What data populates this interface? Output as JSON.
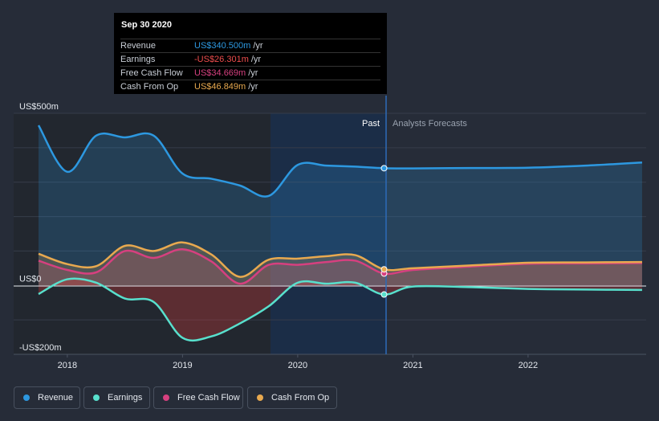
{
  "tooltip": {
    "date": "Sep 30 2020",
    "rows": [
      {
        "label": "Revenue",
        "value": "US$340.500m",
        "unit": "/yr",
        "color": "#2d98e0"
      },
      {
        "label": "Earnings",
        "value": "-US$26.301m",
        "unit": "/yr",
        "color": "#ef4d4d"
      },
      {
        "label": "Free Cash Flow",
        "value": "US$34.669m",
        "unit": "/yr",
        "color": "#d6407f"
      },
      {
        "label": "Cash From Op",
        "value": "US$46.849m",
        "unit": "/yr",
        "color": "#e8a94f"
      }
    ]
  },
  "legend": [
    {
      "label": "Revenue",
      "color": "#2d98e0"
    },
    {
      "label": "Earnings",
      "color": "#58e0cd"
    },
    {
      "label": "Free Cash Flow",
      "color": "#d6407f"
    },
    {
      "label": "Cash From Op",
      "color": "#e8a94f"
    }
  ],
  "chart_data": {
    "type": "line",
    "ylim": [
      -200,
      500
    ],
    "y_tick_labels": [
      "US$500m",
      "US$0",
      "-US$200m"
    ],
    "x_tick_labels": [
      "2018",
      "2019",
      "2020",
      "2021",
      "2022"
    ],
    "past_label": "Past",
    "forecast_label": "Analysts Forecasts",
    "highlight_date": 2020.75,
    "series": [
      {
        "name": "Revenue",
        "color": "#2d98e0",
        "area": true,
        "x": [
          2017.75,
          2018.0,
          2018.25,
          2018.5,
          2018.75,
          2019.0,
          2019.25,
          2019.5,
          2019.75,
          2020.0,
          2020.25,
          2020.5,
          2020.75,
          2021.0,
          2021.5,
          2022.0,
          2022.5,
          2022.99
        ],
        "y": [
          465,
          330,
          435,
          430,
          435,
          325,
          310,
          290,
          260,
          350,
          348,
          345,
          340.5,
          340,
          341,
          342,
          348,
          357
        ]
      },
      {
        "name": "Free Cash Flow",
        "color": "#d6407f",
        "area": true,
        "x": [
          2017.75,
          2018.0,
          2018.25,
          2018.5,
          2018.75,
          2019.0,
          2019.25,
          2019.5,
          2019.75,
          2020.0,
          2020.25,
          2020.5,
          2020.75,
          2021.0,
          2021.5,
          2022.0,
          2022.5,
          2022.99
        ],
        "y": [
          72,
          45,
          38,
          100,
          80,
          105,
          70,
          5,
          60,
          60,
          68,
          72,
          34.7,
          45,
          55,
          63,
          64,
          65
        ]
      },
      {
        "name": "Cash From Op",
        "color": "#e8a94f",
        "area": true,
        "x": [
          2017.75,
          2018.0,
          2018.25,
          2018.5,
          2018.75,
          2019.0,
          2019.25,
          2019.5,
          2019.75,
          2020.0,
          2020.25,
          2020.5,
          2020.75,
          2021.0,
          2021.5,
          2022.0,
          2022.5,
          2022.99
        ],
        "y": [
          92,
          62,
          56,
          115,
          100,
          125,
          90,
          25,
          75,
          78,
          85,
          88,
          46.8,
          50,
          58,
          66,
          67,
          68
        ]
      },
      {
        "name": "Earnings",
        "color": "#58e0cd",
        "area": true,
        "x": [
          2017.75,
          2018.0,
          2018.25,
          2018.5,
          2018.75,
          2019.0,
          2019.25,
          2019.5,
          2019.75,
          2020.0,
          2020.25,
          2020.5,
          2020.75,
          2021.0,
          2021.5,
          2022.0,
          2022.5,
          2022.99
        ],
        "y": [
          -25,
          18,
          8,
          -38,
          -48,
          -152,
          -148,
          -110,
          -60,
          8,
          5,
          8,
          -26.3,
          -3,
          -5,
          -10,
          -12,
          -13
        ]
      }
    ]
  }
}
